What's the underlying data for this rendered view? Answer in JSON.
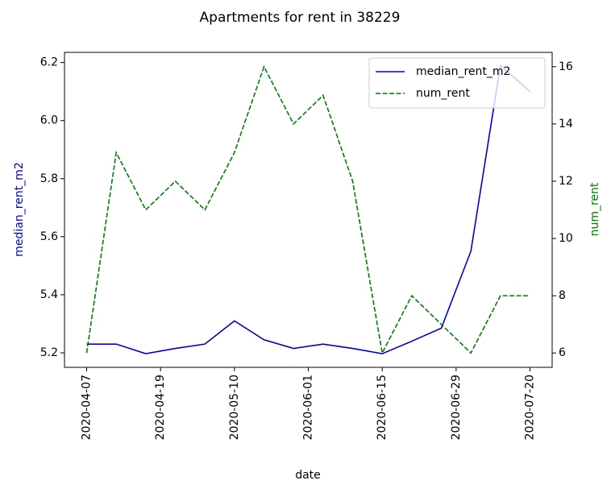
{
  "chart_data": {
    "type": "line",
    "title": "Apartments for rent in 38229",
    "x": [
      0,
      1,
      2,
      3,
      4,
      5,
      6,
      7,
      8,
      9,
      10,
      11,
      12,
      13,
      14,
      15
    ],
    "xlabel": "date",
    "ylabel": "median_rent_m2",
    "y2label": "num_rent",
    "xlim": [
      -0.75,
      15.75
    ],
    "xticks": [
      {
        "value": 0,
        "label": "2020-04-07"
      },
      {
        "value": 2.5,
        "label": "2020-04-19"
      },
      {
        "value": 5,
        "label": "2020-05-10"
      },
      {
        "value": 7.5,
        "label": "2020-06-01"
      },
      {
        "value": 10,
        "label": "2020-06-15"
      },
      {
        "value": 12.5,
        "label": "2020-06-29"
      },
      {
        "value": 15,
        "label": "2020-07-20"
      }
    ],
    "ylim": [
      5.15,
      6.235
    ],
    "yticks": [
      {
        "value": 5.2,
        "label": "5.2"
      },
      {
        "value": 5.4,
        "label": "5.4"
      },
      {
        "value": 5.6,
        "label": "5.6"
      },
      {
        "value": 5.8,
        "label": "5.8"
      },
      {
        "value": 6.0,
        "label": "6.0"
      },
      {
        "value": 6.2,
        "label": "6.2"
      }
    ],
    "y2lim": [
      5.5,
      16.5
    ],
    "y2ticks": [
      6,
      8,
      10,
      12,
      14,
      16
    ],
    "legend": "upper right",
    "series": [
      {
        "name": "median_rent_m2",
        "color": "#0000cd",
        "linestyle": "solid",
        "axis": "y",
        "values": [
          5.23,
          5.23,
          5.197,
          5.215,
          5.23,
          5.31,
          5.245,
          5.215,
          5.23,
          5.215,
          5.197,
          5.24,
          5.285,
          5.55,
          6.19,
          6.1
        ]
      },
      {
        "name": "num_rent",
        "color": "#008000",
        "linestyle": "dashed",
        "axis": "y2",
        "values": [
          6,
          13,
          11,
          12,
          11,
          13,
          16,
          14,
          15,
          12,
          6,
          8,
          7,
          6,
          8,
          8
        ]
      }
    ]
  }
}
